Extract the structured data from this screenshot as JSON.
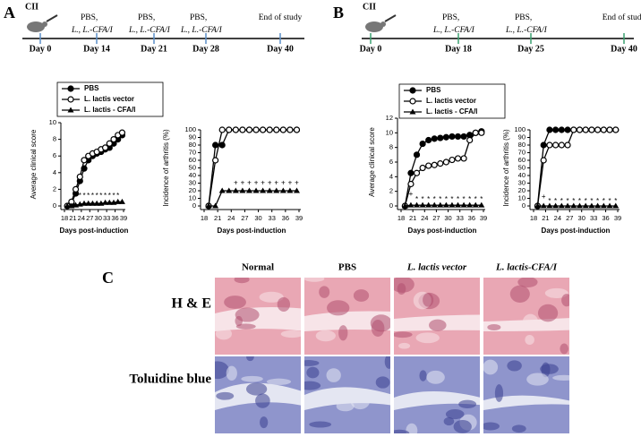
{
  "panel_labels": [
    "A",
    "B",
    "C"
  ],
  "timelines": [
    {
      "start_label": "CII",
      "events": [
        {
          "label": "Day 0"
        },
        {
          "label": "Day 14",
          "note": [
            "PBS,",
            "L., L.-CFA/I"
          ]
        },
        {
          "label": "Day 21",
          "note": [
            "PBS,",
            "L., L.-CFA/I"
          ]
        },
        {
          "label": "Day 28",
          "note": [
            "PBS,",
            "L., L.-CFA/I"
          ]
        },
        {
          "label": "Day 40",
          "note": [
            "End of study"
          ]
        }
      ]
    },
    {
      "start_label": "CII",
      "events": [
        {
          "label": "Day 0"
        },
        {
          "label": "Day 18",
          "note": [
            "PBS,",
            "L., L.-CFA/I"
          ]
        },
        {
          "label": "Day 25",
          "note": [
            "PBS,",
            "L., L.-CFA/I"
          ]
        },
        {
          "label": "Day 40",
          "note": [
            "End of study"
          ]
        }
      ]
    }
  ],
  "chart_data": [
    {
      "type": "line",
      "xlabel": "Days post-induction",
      "ylabel": "Average clinical score",
      "legend": "above",
      "x": [
        19,
        20.5,
        22,
        23.5,
        25,
        26.5,
        28,
        29.5,
        31,
        32.5,
        34,
        35.5,
        37,
        38.5
      ],
      "xlim": [
        18,
        39
      ],
      "xticks": [
        18,
        21,
        24,
        27,
        30,
        33,
        36,
        39
      ],
      "ylim": [
        0,
        10
      ],
      "yticks": [
        0,
        2,
        4,
        6,
        8,
        10
      ],
      "series": [
        {
          "name": "PBS",
          "color": "#000000",
          "marker": "filled-circle",
          "values": [
            0,
            0.3,
            1.5,
            3,
            4.5,
            5.5,
            6,
            6.3,
            6.5,
            6.8,
            7,
            7.5,
            8,
            8.5
          ]
        },
        {
          "name": "L. lactis vector",
          "color": "#000000",
          "marker": "open-circle",
          "values": [
            0,
            0.5,
            2,
            3.5,
            5.5,
            6,
            6.3,
            6.5,
            6.8,
            7,
            7.5,
            8,
            8.5,
            8.8
          ]
        },
        {
          "name": "L. lactis - CFA/I",
          "color": "#000000",
          "marker": "triangle",
          "values": [
            0,
            0,
            0.1,
            0.2,
            0.3,
            0.3,
            0.3,
            0.3,
            0.3,
            0.4,
            0.4,
            0.4,
            0.5,
            0.5
          ]
        }
      ],
      "annotations": [
        {
          "text": "*",
          "x": 22,
          "y": 1.2
        },
        {
          "text": "*",
          "x": 23.5,
          "y": 1.2
        },
        {
          "text": "*",
          "x": 25,
          "y": 1.2
        },
        {
          "text": "*",
          "x": 26.5,
          "y": 1.2
        },
        {
          "text": "*",
          "x": 28,
          "y": 1.2
        },
        {
          "text": "*",
          "x": 29.5,
          "y": 1.2
        },
        {
          "text": "*",
          "x": 31,
          "y": 1.2
        },
        {
          "text": "*",
          "x": 32.5,
          "y": 1.2
        },
        {
          "text": "*",
          "x": 34,
          "y": 1.2
        },
        {
          "text": "*",
          "x": 35.5,
          "y": 1.2
        },
        {
          "text": "*",
          "x": 37,
          "y": 1.2
        }
      ]
    },
    {
      "type": "line",
      "xlabel": "Days post-induction",
      "ylabel": "Incidence of arthritis (%)",
      "x": [
        19,
        20.5,
        22,
        23.5,
        25,
        26.5,
        28,
        29.5,
        31,
        32.5,
        34,
        35.5,
        37,
        38.5
      ],
      "xlim": [
        18,
        39
      ],
      "xticks": [
        18,
        21,
        24,
        27,
        30,
        33,
        36,
        39
      ],
      "ylim": [
        0,
        100
      ],
      "yticks": [
        0,
        10,
        20,
        30,
        40,
        50,
        60,
        70,
        80,
        90,
        100
      ],
      "series": [
        {
          "color": "#000000",
          "marker": "filled-circle",
          "values": [
            0,
            80,
            80,
            100,
            100,
            100,
            100,
            100,
            100,
            100,
            100,
            100,
            100,
            100
          ]
        },
        {
          "color": "#000000",
          "marker": "open-circle",
          "values": [
            0,
            60,
            100,
            100,
            100,
            100,
            100,
            100,
            100,
            100,
            100,
            100,
            100,
            100
          ]
        },
        {
          "color": "#000000",
          "marker": "triangle",
          "values": [
            0,
            0,
            20,
            20,
            20,
            20,
            20,
            20,
            20,
            20,
            20,
            20,
            20,
            20
          ]
        }
      ],
      "annotations": [
        {
          "text": "+",
          "x": 25,
          "y": 30
        },
        {
          "text": "+",
          "x": 26.5,
          "y": 30
        },
        {
          "text": "+",
          "x": 28,
          "y": 30
        },
        {
          "text": "+",
          "x": 29.5,
          "y": 30
        },
        {
          "text": "+",
          "x": 31,
          "y": 30
        },
        {
          "text": "+",
          "x": 32.5,
          "y": 30
        },
        {
          "text": "+",
          "x": 34,
          "y": 30
        },
        {
          "text": "+",
          "x": 35.5,
          "y": 30
        },
        {
          "text": "+",
          "x": 37,
          "y": 30
        },
        {
          "text": "+",
          "x": 38.5,
          "y": 30
        }
      ]
    },
    {
      "type": "line",
      "xlabel": "Days post-induction",
      "ylabel": "Average clinical score",
      "legend": "above",
      "x": [
        19,
        20.5,
        22,
        23.5,
        25,
        26.5,
        28,
        29.5,
        31,
        32.5,
        34,
        35.5,
        37,
        38.5
      ],
      "xlim": [
        18,
        39
      ],
      "xticks": [
        18,
        21,
        24,
        27,
        30,
        33,
        36,
        39
      ],
      "ylim": [
        0,
        12
      ],
      "yticks": [
        0,
        2,
        4,
        6,
        8,
        10,
        12
      ],
      "series": [
        {
          "name": "PBS",
          "color": "#000000",
          "marker": "filled-circle",
          "values": [
            0,
            4.5,
            7,
            8.5,
            9,
            9.2,
            9.3,
            9.4,
            9.5,
            9.5,
            9.5,
            9.7,
            10,
            10.2
          ]
        },
        {
          "name": "L. lactis vector",
          "color": "#000000",
          "marker": "open-circle",
          "values": [
            0,
            3,
            4.5,
            5.2,
            5.5,
            5.6,
            5.8,
            6,
            6.3,
            6.5,
            6.5,
            9,
            10,
            10
          ]
        },
        {
          "name": "L. lactis - CFA/I",
          "color": "#000000",
          "marker": "triangle",
          "values": [
            0,
            0.1,
            0.1,
            0.1,
            0.1,
            0.1,
            0.1,
            0.1,
            0.1,
            0.1,
            0.1,
            0.1,
            0.1,
            0.1
          ]
        }
      ],
      "annotations": [
        {
          "text": "+",
          "x": 20.5,
          "y": 1.6
        },
        {
          "text": "*",
          "x": 22,
          "y": 0.9
        },
        {
          "text": "*",
          "x": 23.5,
          "y": 0.9
        },
        {
          "text": "*",
          "x": 25,
          "y": 0.9
        },
        {
          "text": "*",
          "x": 26.5,
          "y": 0.9
        },
        {
          "text": "*",
          "x": 28,
          "y": 0.9
        },
        {
          "text": "*",
          "x": 29.5,
          "y": 0.9
        },
        {
          "text": "*",
          "x": 31,
          "y": 0.9
        },
        {
          "text": "*",
          "x": 32.5,
          "y": 0.9
        },
        {
          "text": "*",
          "x": 34,
          "y": 0.9
        },
        {
          "text": "*",
          "x": 35.5,
          "y": 0.9
        },
        {
          "text": "*",
          "x": 37,
          "y": 0.9
        },
        {
          "text": "*",
          "x": 38.5,
          "y": 0.9
        }
      ]
    },
    {
      "type": "line",
      "xlabel": "Days post-induction",
      "ylabel": "Incidence of arthritis (%)",
      "x": [
        19,
        20.5,
        22,
        23.5,
        25,
        26.5,
        28,
        29.5,
        31,
        32.5,
        34,
        35.5,
        37,
        38.5
      ],
      "xlim": [
        18,
        39
      ],
      "xticks": [
        18,
        21,
        24,
        27,
        30,
        33,
        36,
        39
      ],
      "ylim": [
        0,
        100
      ],
      "yticks": [
        0,
        10,
        20,
        30,
        40,
        50,
        60,
        70,
        80,
        90,
        100
      ],
      "series": [
        {
          "color": "#000000",
          "marker": "filled-circle",
          "values": [
            0,
            80,
            100,
            100,
            100,
            100,
            100,
            100,
            100,
            100,
            100,
            100,
            100,
            100
          ]
        },
        {
          "color": "#000000",
          "marker": "open-circle",
          "values": [
            0,
            60,
            80,
            80,
            80,
            80,
            100,
            100,
            100,
            100,
            100,
            100,
            100,
            100
          ]
        },
        {
          "color": "#000000",
          "marker": "triangle",
          "values": [
            0,
            0,
            0,
            0,
            0,
            0,
            0,
            0,
            0,
            0,
            0,
            0,
            0,
            0
          ]
        }
      ],
      "annotations": [
        {
          "text": "+",
          "x": 20.5,
          "y": 12
        },
        {
          "text": "*",
          "x": 22,
          "y": 6
        },
        {
          "text": "*",
          "x": 23.5,
          "y": 6
        },
        {
          "text": "*",
          "x": 25,
          "y": 6
        },
        {
          "text": "*",
          "x": 26.5,
          "y": 6
        },
        {
          "text": "*",
          "x": 28,
          "y": 6
        },
        {
          "text": "*",
          "x": 29.5,
          "y": 6
        },
        {
          "text": "*",
          "x": 31,
          "y": 6
        },
        {
          "text": "*",
          "x": 32.5,
          "y": 6
        },
        {
          "text": "*",
          "x": 34,
          "y": 6
        },
        {
          "text": "*",
          "x": 35.5,
          "y": 6
        },
        {
          "text": "*",
          "x": 37,
          "y": 6
        },
        {
          "text": "*",
          "x": 38.5,
          "y": 6
        }
      ]
    }
  ],
  "histology": {
    "columns": [
      "Normal",
      "PBS",
      "L. lactis vector",
      "L. lactis-CFA/I"
    ],
    "rows": [
      "H & E",
      "Toluidine blue"
    ]
  }
}
